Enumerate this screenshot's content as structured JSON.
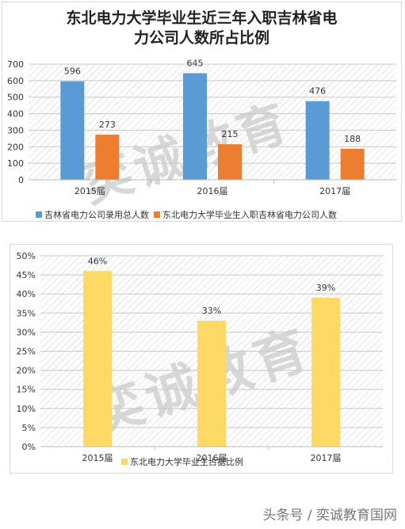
{
  "chart_data": [
    {
      "type": "bar",
      "title": "东北电力大学毕业生近三年入职吉林省电力公司人数所占比例",
      "title_lines": [
        "东北电力大学毕业生近三年入职吉林省电",
        "力公司人数所占比例"
      ],
      "categories": [
        "2015届",
        "2016届",
        "2017届"
      ],
      "series": [
        {
          "name": "吉林省电力公司录用总人数",
          "values": [
            596,
            645,
            476
          ],
          "color": "#5b9bd5"
        },
        {
          "name": "东北电力大学毕业生入职吉林省电力公司人数",
          "values": [
            273,
            215,
            188
          ],
          "color": "#ed7d31"
        }
      ],
      "ylim": [
        0,
        700
      ],
      "yticks": [
        0,
        100,
        200,
        300,
        400,
        500,
        600,
        700
      ],
      "grid": true,
      "legend": "bottom"
    },
    {
      "type": "bar",
      "title": "",
      "categories": [
        "2015届",
        "2016届",
        "2017届"
      ],
      "series": [
        {
          "name": "东北电力大学毕业生占据比例",
          "values": [
            46,
            33,
            39
          ],
          "labels": [
            "46%",
            "33%",
            "39%"
          ],
          "color": "#ffd966"
        }
      ],
      "ylim": [
        0,
        50
      ],
      "yticks": [
        "0%",
        "5%",
        "10%",
        "15%",
        "20%",
        "25%",
        "30%",
        "35%",
        "40%",
        "45%",
        "50%"
      ],
      "grid": true,
      "legend": "bottom"
    }
  ],
  "watermark": "奕诚教育",
  "footer": "头条号 / 奕诚教育国网"
}
